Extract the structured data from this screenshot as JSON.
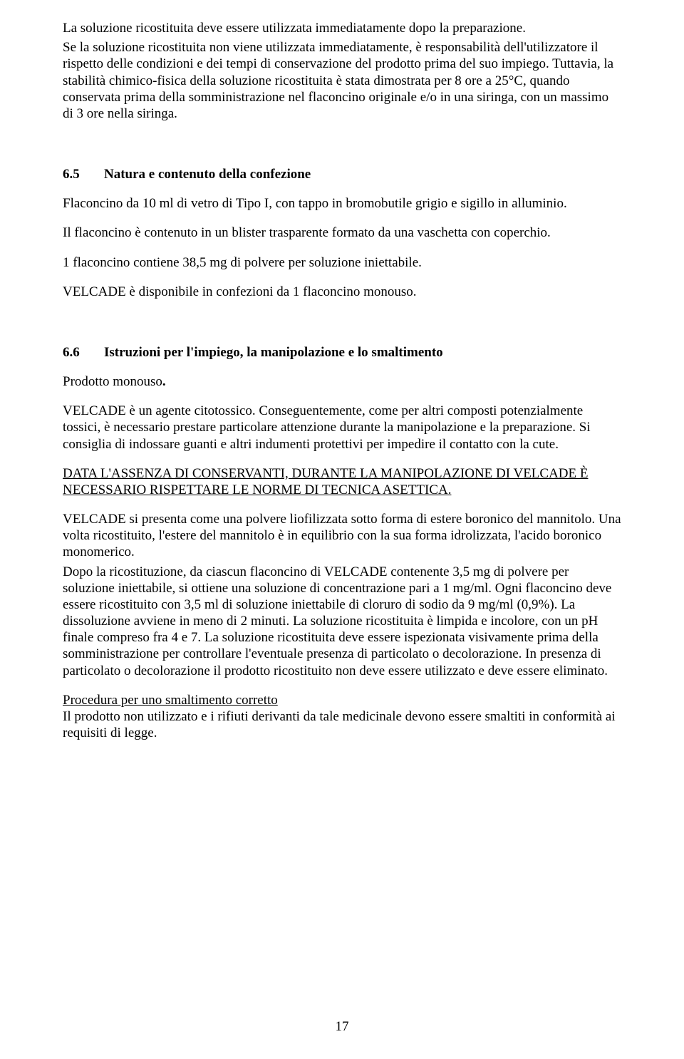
{
  "document": {
    "background_color": "#ffffff",
    "text_color": "#000000",
    "font_family": "Times New Roman",
    "base_font_size_pt": 14,
    "page_number": "17"
  },
  "p1": "La soluzione ricostituita deve essere utilizzata immediatamente dopo la preparazione.",
  "p2": "Se la soluzione ricostituita non viene utilizzata immediatamente, è responsabilità dell'utilizzatore il rispetto delle condizioni e dei tempi di conservazione del prodotto prima del suo impiego. Tuttavia,  la stabilità chimico-fisica della soluzione ricostituita è stata dimostrata per 8 ore a 25°C, quando conservata prima della somministrazione nel flaconcino originale e/o in una siringa, con un massimo di 3 ore nella siringa.",
  "sec65": {
    "num": "6.5",
    "title": "Natura e contenuto della confezione"
  },
  "p3": "Flaconcino da 10 ml di vetro di Tipo I, con tappo in bromobutile grigio e sigillo in alluminio.",
  "p4": "Il flaconcino è contenuto in un blister trasparente formato da una vaschetta con coperchio.",
  "p5": "1 flaconcino contiene 38,5 mg di polvere per soluzione iniettabile.",
  "p6": "VELCADE è disponibile in confezioni da 1 flaconcino monouso.",
  "sec66": {
    "num": "6.6",
    "title": "Istruzioni per l'impiego, la manipolazione e lo smaltimento"
  },
  "p7a": "Prodotto monouso",
  "p7b": ".",
  "p8": "VELCADE è un agente citotossico. Conseguentemente, come per  altri composti potenzialmente tossici, è necessario prestare particolare attenzione durante la manipolazione e la preparazione. Si consiglia di indossare guanti e altri indumenti protettivi per impedire il contatto con la cute.",
  "p9": "DATA L'ASSENZA DI CONSERVANTI, DURANTE LA MANIPOLAZIONE DI VELCADE È NECESSARIO RISPETTARE LE NORME DI TECNICA ASETTICA.",
  "p10": "VELCADE si presenta come una polvere liofilizzata sotto forma di estere boronico del mannitolo. Una volta ricostituito, l'estere del mannitolo è in equilibrio con la sua forma idrolizzata, l'acido boronico monomerico.",
  "p11": "Dopo la ricostituzione, da ciascun flaconcino di VELCADE contenente 3,5 mg di polvere per soluzione iniettabile, si ottiene una soluzione di concentrazione pari a 1 mg/ml. Ogni flaconcino deve essere ricostituito con 3,5 ml di soluzione iniettabile di cloruro di sodio da 9 mg/ml (0,9%). La dissoluzione avviene in meno di 2 minuti. La soluzione ricostituita è limpida e incolore, con un pH finale compreso fra 4 e 7. La soluzione  ricostituita deve essere ispezionata visivamente prima della somministrazione per controllare l'eventuale presenza di particolato o decolorazione. In presenza di particolato o decolorazione il prodotto ricostituito non deve essere utilizzato e deve essere eliminato.",
  "p12_head": "Procedura per uno smaltimento corretto",
  "p12_body": "Il prodotto non utilizzato e i rifiuti derivanti da tale medicinale devono essere smaltiti in conformità ai requisiti di legge."
}
